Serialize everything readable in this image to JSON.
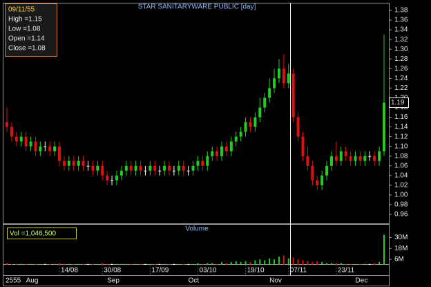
{
  "chart_data": {
    "type": "candlestick",
    "title": "STAR SANITARYWARE PUBLIC [day]",
    "open": [
      1.15,
      1.14,
      1.12,
      1.11,
      1.12,
      1.1,
      1.11,
      1.09,
      1.1,
      1.1,
      1.09,
      1.1,
      1.07,
      1.06,
      1.07,
      1.06,
      1.07,
      1.06,
      1.06,
      1.05,
      1.06,
      1.04,
      1.03,
      1.03,
      1.04,
      1.05,
      1.06,
      1.05,
      1.06,
      1.05,
      1.05,
      1.06,
      1.05,
      1.05,
      1.06,
      1.05,
      1.05,
      1.06,
      1.05,
      1.05,
      1.06,
      1.07,
      1.06,
      1.08,
      1.09,
      1.08,
      1.1,
      1.09,
      1.11,
      1.12,
      1.13,
      1.15,
      1.14,
      1.16,
      1.18,
      1.2,
      1.22,
      1.24,
      1.26,
      1.23,
      1.25,
      1.16,
      1.12,
      1.08,
      1.06,
      1.03,
      1.02,
      1.04,
      1.06,
      1.08,
      1.07,
      1.09,
      1.08,
      1.07,
      1.08,
      1.07,
      1.08,
      1.08,
      1.07,
      1.09
    ],
    "high": [
      1.18,
      1.15,
      1.13,
      1.13,
      1.13,
      1.12,
      1.12,
      1.11,
      1.11,
      1.11,
      1.11,
      1.11,
      1.08,
      1.08,
      1.08,
      1.08,
      1.08,
      1.07,
      1.07,
      1.07,
      1.07,
      1.05,
      1.04,
      1.05,
      1.06,
      1.07,
      1.07,
      1.07,
      1.07,
      1.06,
      1.07,
      1.07,
      1.06,
      1.07,
      1.07,
      1.06,
      1.07,
      1.07,
      1.06,
      1.07,
      1.08,
      1.08,
      1.09,
      1.1,
      1.1,
      1.11,
      1.11,
      1.12,
      1.13,
      1.14,
      1.16,
      1.16,
      1.17,
      1.2,
      1.21,
      1.24,
      1.26,
      1.28,
      1.29,
      1.27,
      1.26,
      1.17,
      1.13,
      1.1,
      1.07,
      1.04,
      1.05,
      1.07,
      1.09,
      1.11,
      1.1,
      1.1,
      1.09,
      1.09,
      1.09,
      1.09,
      1.09,
      1.09,
      1.1,
      1.33
    ],
    "low": [
      1.13,
      1.11,
      1.1,
      1.1,
      1.09,
      1.09,
      1.08,
      1.08,
      1.09,
      1.08,
      1.08,
      1.06,
      1.05,
      1.05,
      1.05,
      1.05,
      1.05,
      1.05,
      1.04,
      1.04,
      1.03,
      1.02,
      1.02,
      1.02,
      1.03,
      1.04,
      1.04,
      1.04,
      1.04,
      1.04,
      1.04,
      1.04,
      1.04,
      1.04,
      1.04,
      1.04,
      1.04,
      1.04,
      1.04,
      1.04,
      1.05,
      1.05,
      1.05,
      1.07,
      1.07,
      1.07,
      1.08,
      1.08,
      1.1,
      1.11,
      1.12,
      1.13,
      1.13,
      1.15,
      1.17,
      1.19,
      1.21,
      1.23,
      1.22,
      1.22,
      1.15,
      1.11,
      1.07,
      1.05,
      1.02,
      1.01,
      1.01,
      1.03,
      1.05,
      1.06,
      1.06,
      1.07,
      1.06,
      1.06,
      1.06,
      1.06,
      1.07,
      1.06,
      1.06,
      1.08
    ],
    "close": [
      1.14,
      1.12,
      1.11,
      1.12,
      1.1,
      1.11,
      1.09,
      1.1,
      1.1,
      1.09,
      1.1,
      1.07,
      1.06,
      1.07,
      1.06,
      1.07,
      1.06,
      1.06,
      1.05,
      1.06,
      1.04,
      1.03,
      1.03,
      1.04,
      1.05,
      1.06,
      1.05,
      1.06,
      1.05,
      1.05,
      1.06,
      1.05,
      1.05,
      1.06,
      1.05,
      1.05,
      1.06,
      1.05,
      1.05,
      1.06,
      1.07,
      1.06,
      1.08,
      1.09,
      1.08,
      1.1,
      1.09,
      1.11,
      1.12,
      1.13,
      1.15,
      1.14,
      1.16,
      1.18,
      1.2,
      1.22,
      1.24,
      1.26,
      1.23,
      1.25,
      1.16,
      1.12,
      1.08,
      1.06,
      1.03,
      1.02,
      1.04,
      1.06,
      1.08,
      1.07,
      1.09,
      1.08,
      1.07,
      1.08,
      1.07,
      1.08,
      1.08,
      1.07,
      1.09,
      1.19
    ],
    "volume": [
      2,
      1,
      1,
      1,
      1,
      1,
      1,
      1,
      1,
      1,
      1,
      2,
      1,
      1,
      1,
      1,
      1,
      1,
      1,
      1,
      2,
      1,
      1,
      1,
      1,
      1,
      1,
      1,
      1,
      1,
      1,
      1,
      1,
      1,
      1,
      1,
      1,
      1,
      1,
      1,
      2,
      1,
      2,
      2,
      1,
      3,
      2,
      3,
      4,
      3,
      4,
      3,
      5,
      6,
      5,
      7,
      6,
      9,
      10,
      7,
      8,
      6,
      5,
      4,
      3,
      4,
      3,
      2,
      2,
      2,
      2,
      1,
      1,
      1,
      1,
      1,
      1,
      2,
      3,
      33
    ],
    "categories": [
      null,
      null,
      null,
      null,
      null,
      null,
      null,
      null,
      null,
      null,
      null,
      "14/08",
      null,
      null,
      null,
      null,
      null,
      null,
      null,
      null,
      "30/08",
      null,
      null,
      null,
      null,
      null,
      null,
      null,
      null,
      null,
      "17/09",
      null,
      null,
      null,
      null,
      null,
      null,
      null,
      null,
      null,
      "03/10",
      null,
      null,
      null,
      null,
      null,
      null,
      null,
      null,
      null,
      "19/10",
      null,
      null,
      null,
      null,
      null,
      null,
      null,
      null,
      "07/11",
      null,
      null,
      null,
      null,
      null,
      null,
      null,
      null,
      null,
      "23/11",
      null,
      null,
      null,
      null,
      null,
      null,
      null,
      null,
      null,
      null
    ],
    "months": [
      null,
      null,
      null,
      null,
      "Aug",
      null,
      null,
      null,
      null,
      null,
      null,
      null,
      null,
      null,
      null,
      null,
      null,
      null,
      null,
      null,
      null,
      "Sep",
      null,
      null,
      null,
      null,
      null,
      null,
      null,
      null,
      null,
      null,
      null,
      null,
      null,
      null,
      null,
      null,
      "Oct",
      null,
      null,
      null,
      null,
      null,
      null,
      null,
      null,
      null,
      null,
      null,
      null,
      null,
      null,
      null,
      null,
      "Nov",
      null,
      null,
      null,
      null,
      null,
      null,
      null,
      null,
      null,
      null,
      null,
      null,
      null,
      null,
      null,
      null,
      null,
      "Dec",
      null,
      null,
      null,
      null,
      null,
      null
    ],
    "year": "2555",
    "ylim": [
      0.96,
      1.38
    ],
    "yticks": [
      1.38,
      1.36,
      1.34,
      1.32,
      {
        "value": 1.3,
        "label": "1.30"
      },
      1.28,
      1.26,
      1.24,
      1.22,
      {
        "value": 1.2,
        "label": "1.20"
      },
      1.18,
      1.16,
      1.14,
      1.12,
      {
        "value": 1.1,
        "label": "1.10"
      },
      1.08,
      1.06,
      1.04,
      1.02,
      {
        "value": 1,
        "label": "1.00"
      },
      0.98,
      0.96
    ],
    "volume_title": "Volume",
    "volume_lim": [
      0,
      44
    ],
    "volume_ticks": [
      {
        "value": 30,
        "label": "30M"
      },
      {
        "value": 18,
        "label": "18M"
      },
      {
        "value": 6,
        "label": "6M"
      }
    ],
    "info_date": "09/11/55",
    "info_lines": [
      "High =1.15",
      "Low =1.08",
      "Open =1.14",
      "Close =1.08"
    ],
    "volume_info": "Vol =1,046,500",
    "up_color": "#22cc22",
    "down_color": "#dd1111",
    "flat_color": "#ffffff"
  }
}
